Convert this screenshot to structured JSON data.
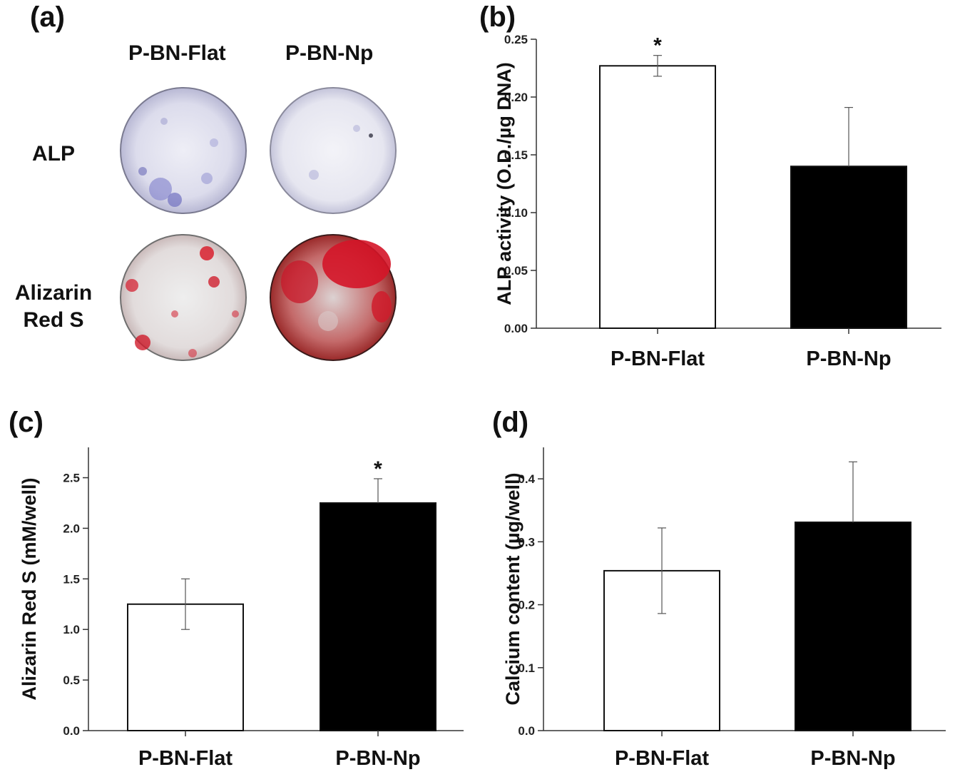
{
  "panels": {
    "a": {
      "label": "(a)",
      "columns": [
        "P-BN-Flat",
        "P-BN-Np"
      ],
      "rows": [
        {
          "lines": [
            "ALP"
          ],
          "stain_color": "#5c5ab8"
        },
        {
          "lines": [
            "Alizarin",
            "Red S"
          ],
          "stain_color": "#cf1c2c"
        }
      ]
    },
    "b": {
      "label": "(b)"
    },
    "c": {
      "label": "(c)"
    },
    "d": {
      "label": "(d)"
    }
  },
  "chart_data": [
    {
      "panel": "(b)",
      "type": "bar",
      "categories": [
        "P-BN-Flat",
        "P-BN-Np"
      ],
      "values": [
        0.227,
        0.14
      ],
      "errors": [
        0.009,
        0.051
      ],
      "significance": [
        "*",
        ""
      ],
      "bar_colors": [
        "#ffffff",
        "#000000"
      ],
      "ylabel": "ALP activity  (O.D./µg DNA)",
      "ylim": [
        0,
        0.25
      ],
      "yticks": [
        0.0,
        0.05,
        0.1,
        0.15,
        0.2,
        0.25
      ],
      "ytick_labels": [
        "0.00",
        "0.05",
        "0.10",
        "0.15",
        "0.20",
        "0.25"
      ]
    },
    {
      "panel": "(c)",
      "type": "bar",
      "categories": [
        "P-BN-Flat",
        "P-BN-Np"
      ],
      "values": [
        1.25,
        2.25
      ],
      "errors": [
        0.25,
        0.24
      ],
      "significance": [
        "",
        "*"
      ],
      "bar_colors": [
        "#ffffff",
        "#000000"
      ],
      "ylabel": "Alizarin Red S (mM/well)",
      "ylim": [
        0,
        2.8
      ],
      "yticks": [
        0.0,
        0.5,
        1.0,
        1.5,
        2.0,
        2.5
      ],
      "ytick_labels": [
        "0.0",
        "0.5",
        "1.0",
        "1.5",
        "2.0",
        "2.5"
      ]
    },
    {
      "panel": "(d)",
      "type": "bar",
      "categories": [
        "P-BN-Flat",
        "P-BN-Np"
      ],
      "values": [
        0.254,
        0.331
      ],
      "errors": [
        0.068,
        0.096
      ],
      "significance": [
        "",
        ""
      ],
      "bar_colors": [
        "#ffffff",
        "#000000"
      ],
      "ylabel": "Calcium content (µg/well)",
      "ylim": [
        0,
        0.45
      ],
      "yticks": [
        0.0,
        0.1,
        0.2,
        0.3,
        0.4
      ],
      "ytick_labels": [
        "0.0",
        "0.1",
        "0.2",
        "0.3",
        "0.4"
      ]
    }
  ]
}
